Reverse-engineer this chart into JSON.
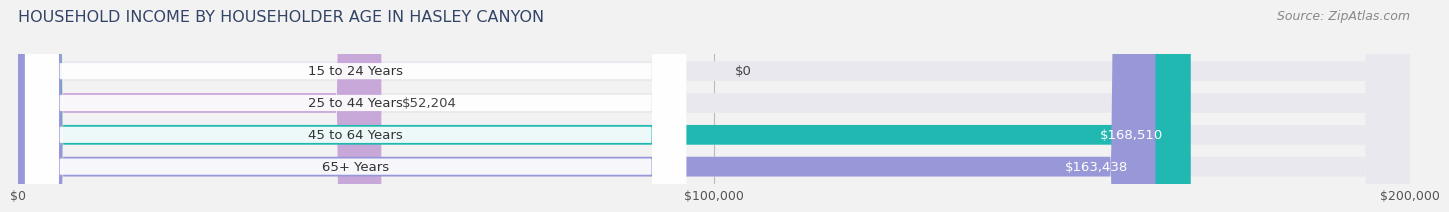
{
  "title": "HOUSEHOLD INCOME BY HOUSEHOLDER AGE IN HASLEY CANYON",
  "source": "Source: ZipAtlas.com",
  "categories": [
    "15 to 24 Years",
    "25 to 44 Years",
    "45 to 64 Years",
    "65+ Years"
  ],
  "values": [
    0,
    52204,
    168510,
    163438
  ],
  "bar_colors": [
    "#a8c8e8",
    "#c8a8d8",
    "#20b8b0",
    "#9898d8"
  ],
  "label_colors": [
    "#444444",
    "#444444",
    "#ffffff",
    "#ffffff"
  ],
  "value_colors_inside": [
    false,
    false,
    true,
    true
  ],
  "xlim": [
    0,
    200000
  ],
  "xticks": [
    0,
    100000,
    200000
  ],
  "xtick_labels": [
    "$0",
    "$100,000",
    "$200,000"
  ],
  "bg_color": "#f2f2f2",
  "bar_bg_color": "#e8e8ee",
  "bar_height": 0.62,
  "title_fontsize": 11.5,
  "source_fontsize": 9,
  "label_fontsize": 9.5,
  "value_fontsize": 9.5
}
